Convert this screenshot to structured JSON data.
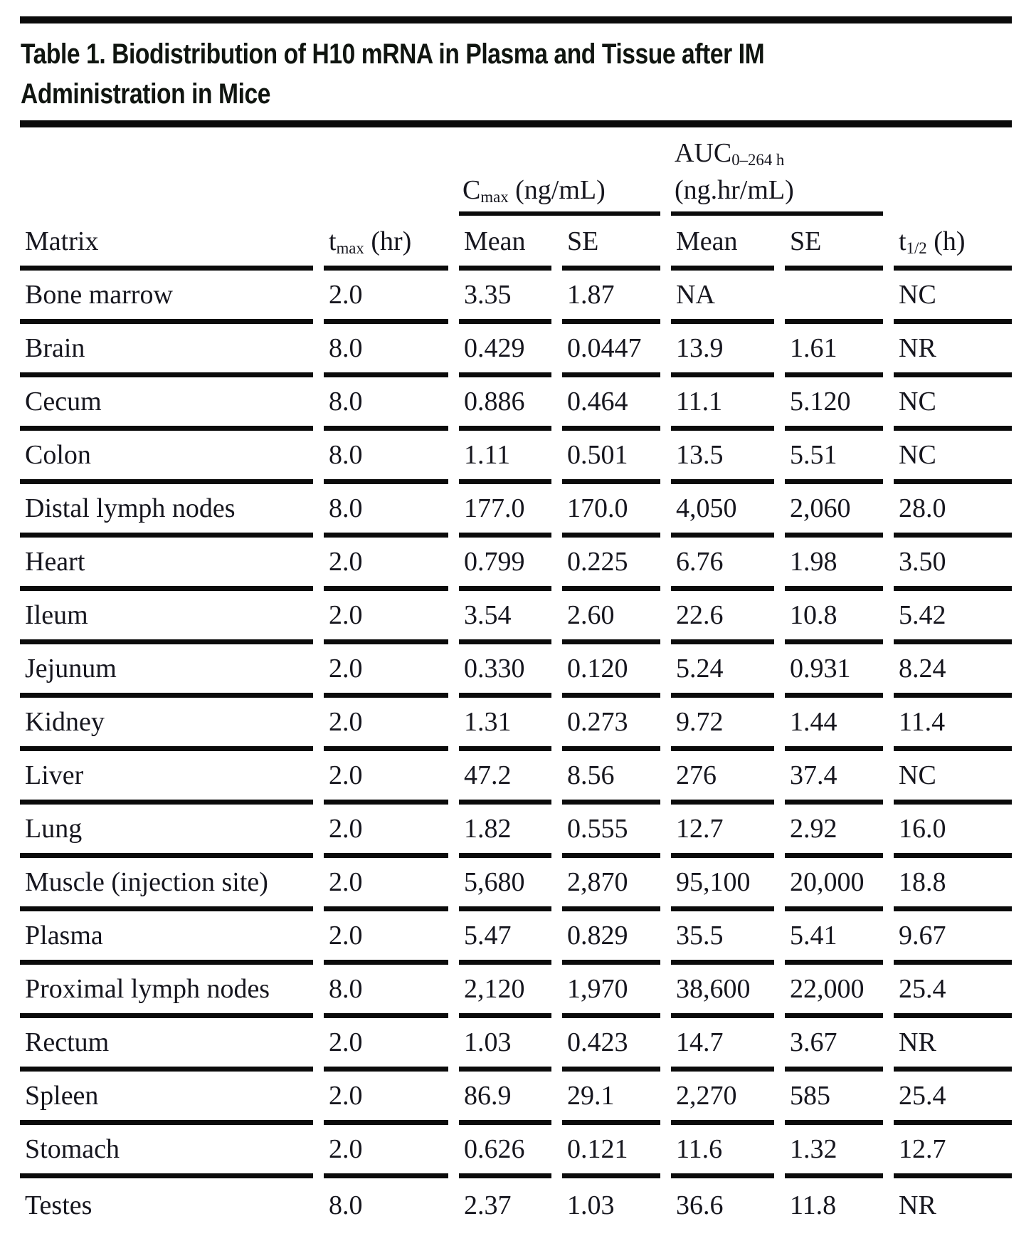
{
  "title": {
    "line1": "Table 1. Biodistribution of H10 mRNA in Plasma and Tissue after IM",
    "line2": "Administration in Mice"
  },
  "table": {
    "group_headers": {
      "cmax": {
        "base": "C",
        "sub": "max",
        "unit": " (ng/mL)"
      },
      "auc": {
        "base": "AUC",
        "sub": "0–264 h",
        "unit": "(ng.hr/mL)"
      }
    },
    "columns": {
      "matrix": "Matrix",
      "tmax": {
        "base": "t",
        "sub": "max",
        "unit": " (hr)"
      },
      "cmax_mean": "Mean",
      "cmax_se": "SE",
      "auc_mean": "Mean",
      "auc_se": "SE",
      "thalf": {
        "base": "t",
        "sub": "1/2",
        "unit": " (h)"
      }
    },
    "rows": [
      {
        "matrix": "Bone marrow",
        "tmax": "2.0",
        "cmax_mean": "3.35",
        "cmax_se": "1.87",
        "auc_mean": "NA",
        "auc_se": "",
        "thalf": "NC"
      },
      {
        "matrix": "Brain",
        "tmax": "8.0",
        "cmax_mean": "0.429",
        "cmax_se": "0.0447",
        "auc_mean": "13.9",
        "auc_se": "1.61",
        "thalf": "NR"
      },
      {
        "matrix": "Cecum",
        "tmax": "8.0",
        "cmax_mean": "0.886",
        "cmax_se": "0.464",
        "auc_mean": "11.1",
        "auc_se": "5.120",
        "thalf": "NC"
      },
      {
        "matrix": "Colon",
        "tmax": "8.0",
        "cmax_mean": "1.11",
        "cmax_se": "0.501",
        "auc_mean": "13.5",
        "auc_se": "5.51",
        "thalf": "NC"
      },
      {
        "matrix": "Distal lymph nodes",
        "tmax": "8.0",
        "cmax_mean": "177.0",
        "cmax_se": "170.0",
        "auc_mean": "4,050",
        "auc_se": "2,060",
        "thalf": "28.0"
      },
      {
        "matrix": "Heart",
        "tmax": "2.0",
        "cmax_mean": "0.799",
        "cmax_se": "0.225",
        "auc_mean": "6.76",
        "auc_se": "1.98",
        "thalf": "3.50"
      },
      {
        "matrix": "Ileum",
        "tmax": "2.0",
        "cmax_mean": "3.54",
        "cmax_se": "2.60",
        "auc_mean": "22.6",
        "auc_se": "10.8",
        "thalf": "5.42"
      },
      {
        "matrix": "Jejunum",
        "tmax": "2.0",
        "cmax_mean": "0.330",
        "cmax_se": "0.120",
        "auc_mean": "5.24",
        "auc_se": "0.931",
        "thalf": "8.24"
      },
      {
        "matrix": "Kidney",
        "tmax": "2.0",
        "cmax_mean": "1.31",
        "cmax_se": "0.273",
        "auc_mean": "9.72",
        "auc_se": "1.44",
        "thalf": "11.4"
      },
      {
        "matrix": "Liver",
        "tmax": "2.0",
        "cmax_mean": "47.2",
        "cmax_se": "8.56",
        "auc_mean": "276",
        "auc_se": "37.4",
        "thalf": "NC"
      },
      {
        "matrix": "Lung",
        "tmax": "2.0",
        "cmax_mean": "1.82",
        "cmax_se": "0.555",
        "auc_mean": "12.7",
        "auc_se": "2.92",
        "thalf": "16.0"
      },
      {
        "matrix": "Muscle (injection site)",
        "tmax": "2.0",
        "cmax_mean": "5,680",
        "cmax_se": "2,870",
        "auc_mean": "95,100",
        "auc_se": "20,000",
        "thalf": "18.8"
      },
      {
        "matrix": "Plasma",
        "tmax": "2.0",
        "cmax_mean": "5.47",
        "cmax_se": "0.829",
        "auc_mean": "35.5",
        "auc_se": "5.41",
        "thalf": "9.67"
      },
      {
        "matrix": "Proximal lymph nodes",
        "tmax": "8.0",
        "cmax_mean": "2,120",
        "cmax_se": "1,970",
        "auc_mean": "38,600",
        "auc_se": "22,000",
        "thalf": "25.4"
      },
      {
        "matrix": "Rectum",
        "tmax": "2.0",
        "cmax_mean": "1.03",
        "cmax_se": "0.423",
        "auc_mean": "14.7",
        "auc_se": "3.67",
        "thalf": "NR"
      },
      {
        "matrix": "Spleen",
        "tmax": "2.0",
        "cmax_mean": "86.9",
        "cmax_se": "29.1",
        "auc_mean": "2,270",
        "auc_se": "585",
        "thalf": "25.4"
      },
      {
        "matrix": "Stomach",
        "tmax": "2.0",
        "cmax_mean": "0.626",
        "cmax_se": "0.121",
        "auc_mean": "11.6",
        "auc_se": "1.32",
        "thalf": "12.7"
      },
      {
        "matrix": "Testes",
        "tmax": "8.0",
        "cmax_mean": "2.37",
        "cmax_se": "1.03",
        "auc_mean": "36.6",
        "auc_se": "11.8",
        "thalf": "NR"
      }
    ]
  }
}
